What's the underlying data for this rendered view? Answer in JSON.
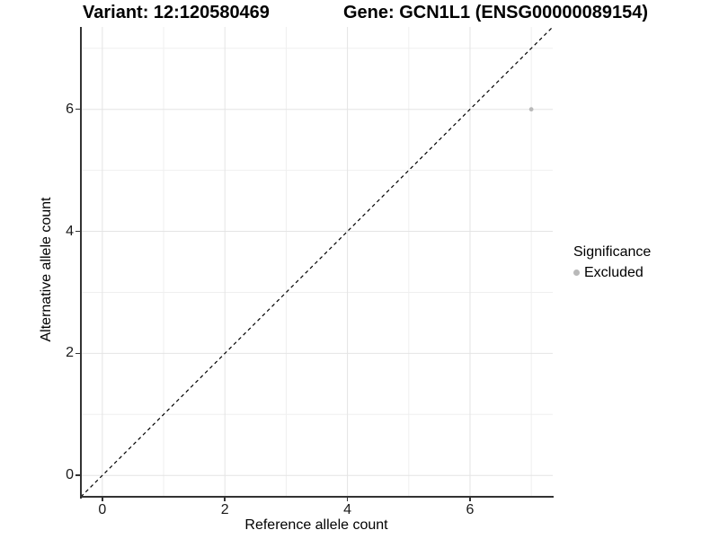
{
  "chart_data": {
    "type": "scatter",
    "titles": {
      "left": "Variant: 12:120580469",
      "right": "Gene: GCN1L1 (ENSG00000089154)"
    },
    "xlabel": "Reference allele count",
    "ylabel": "Alternative allele count",
    "xlim": [
      -0.35,
      7.35
    ],
    "ylim": [
      -0.35,
      7.35
    ],
    "x_major_ticks": [
      0,
      2,
      4,
      6
    ],
    "x_minor_ticks": [
      1,
      3,
      5,
      7
    ],
    "y_major_ticks": [
      0,
      2,
      4,
      6
    ],
    "y_minor_ticks": [
      1,
      3,
      5,
      7
    ],
    "grid": true,
    "legend_position": "right",
    "reference_line": {
      "type": "identity",
      "slope": 1,
      "intercept": 0,
      "style": "dashed"
    },
    "series": [
      {
        "name": "Excluded",
        "color": "#b9b9b9",
        "points": [
          {
            "x": 7,
            "y": 6
          }
        ]
      }
    ],
    "legend": {
      "title": "Significance",
      "entries": [
        {
          "label": "Excluded",
          "color": "#b9b9b9"
        }
      ]
    },
    "colors": {
      "background": "#ffffff",
      "grid_major": "#e4e4e4",
      "grid_minor": "#efefef",
      "axis_line": "#333333",
      "tick_label": "#1a1a1a",
      "diagonal": "#000000"
    }
  }
}
